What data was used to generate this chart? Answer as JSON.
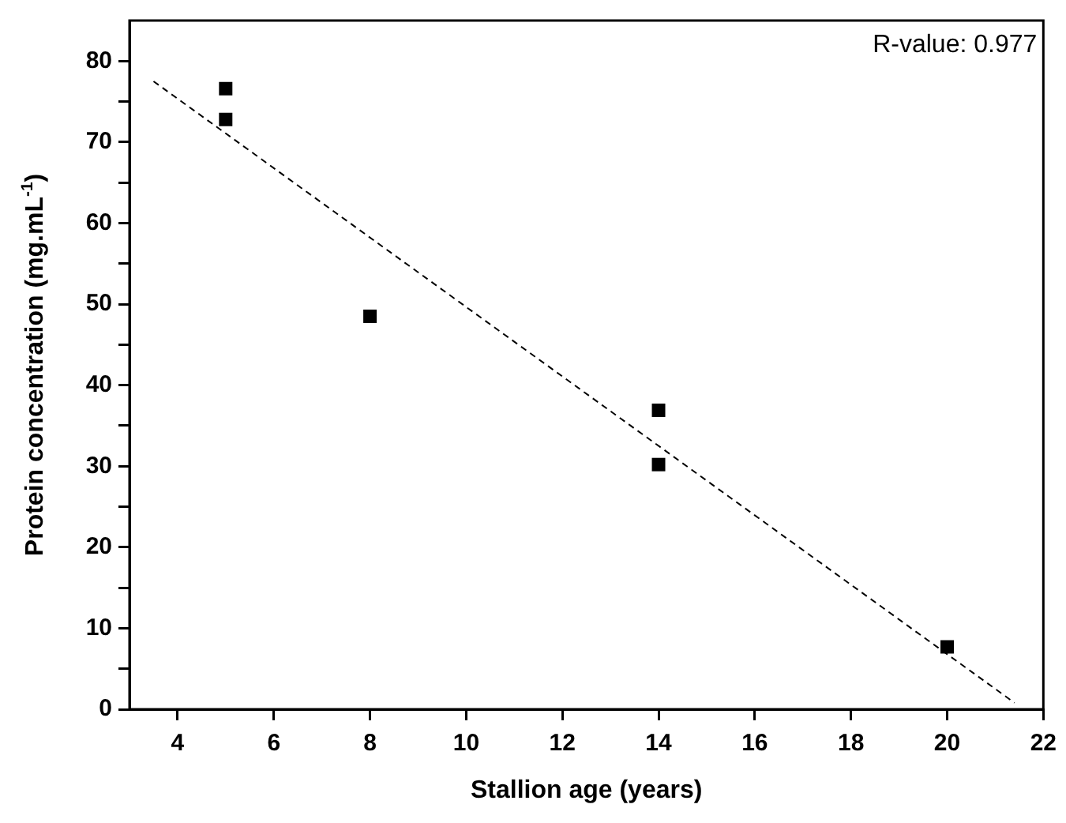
{
  "chart_data": {
    "type": "scatter",
    "xlabel": "Stallion age (years)",
    "ylabel": "Protein concentration (mg.mL$^{-1}$)",
    "annotations": [
      "R-value: 0.977"
    ],
    "xlim": [
      3,
      22
    ],
    "xticks": [
      4,
      6,
      8,
      10,
      12,
      14,
      16,
      18,
      20,
      22
    ],
    "ylim": [
      0,
      85
    ],
    "yticks": [
      0,
      {
        "value": 5,
        "label": null
      },
      10,
      {
        "value": 15,
        "label": null
      },
      20,
      {
        "value": 25,
        "label": null
      },
      30,
      {
        "value": 35,
        "label": null
      },
      40,
      {
        "value": 45,
        "label": null
      },
      50,
      {
        "value": 55,
        "label": null
      },
      60,
      {
        "value": 65,
        "label": null
      },
      70,
      {
        "value": 75,
        "label": null
      },
      80
    ],
    "grid": false,
    "legend": false,
    "series": [
      {
        "type": "scatter",
        "color": "#000000",
        "marker": "square",
        "x": [
          5,
          5,
          8,
          14,
          14,
          20
        ],
        "values": [
          76.6,
          72.8,
          48.5,
          36.9,
          30.2,
          7.7
        ]
      },
      {
        "type": "line",
        "color": "#000000",
        "marker": "none",
        "line_style": "dashed",
        "x": [
          3.5,
          21.4
        ],
        "values": [
          77.5,
          0.8
        ]
      }
    ]
  }
}
